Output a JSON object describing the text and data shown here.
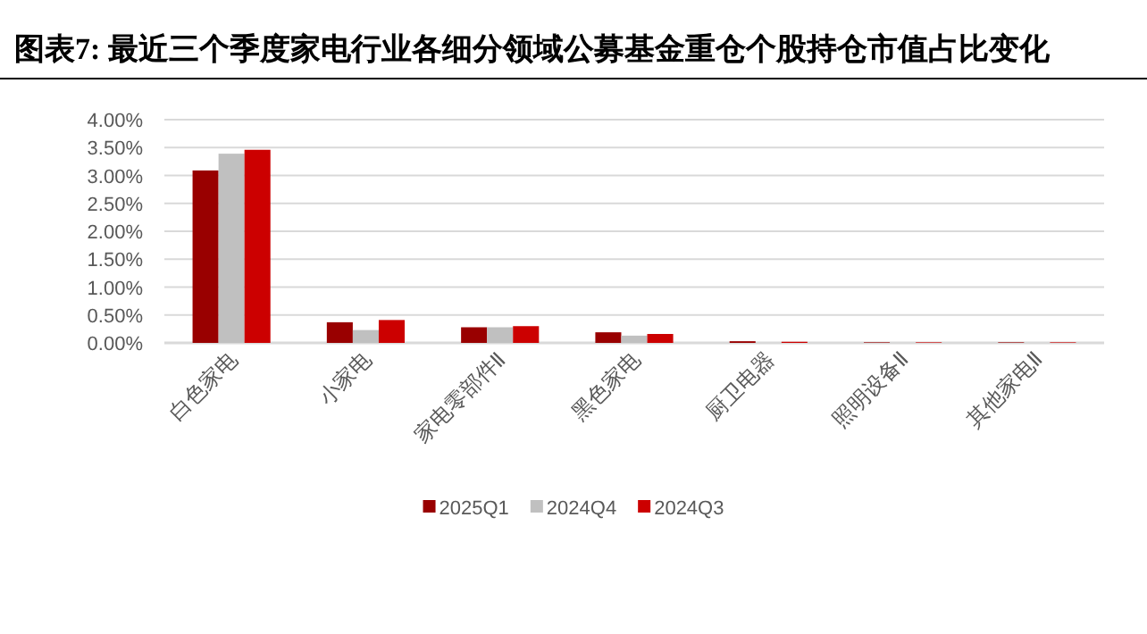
{
  "chart_data": {
    "type": "bar",
    "title": "图表7: 最近三个季度家电行业各细分领域公募基金重仓个股持仓市值占比变化",
    "categories": [
      "白色家电",
      "小家电",
      "家电零部件Ⅱ",
      "黑色家电",
      "厨卫电器",
      "照明设备Ⅱ",
      "其他家电Ⅱ"
    ],
    "series": [
      {
        "name": "2025Q1",
        "color": "#990000",
        "values": [
          3.09,
          0.37,
          0.28,
          0.19,
          0.03,
          0.01,
          0.01
        ]
      },
      {
        "name": "2024Q4",
        "color": "#c0c0c0",
        "values": [
          3.39,
          0.23,
          0.28,
          0.13,
          null,
          null,
          null
        ]
      },
      {
        "name": "2024Q3",
        "color": "#cc0000",
        "values": [
          3.46,
          0.41,
          0.3,
          0.16,
          0.02,
          0.01,
          0.01
        ]
      }
    ],
    "ylim": [
      0,
      4
    ],
    "yticks": [
      {
        "value": 0,
        "label": "0.00%"
      },
      {
        "value": 0.5,
        "label": "0.50%"
      },
      {
        "value": 1,
        "label": "1.00%"
      },
      {
        "value": 1.5,
        "label": "1.50%"
      },
      {
        "value": 2,
        "label": "2.00%"
      },
      {
        "value": 2.5,
        "label": "2.50%"
      },
      {
        "value": 3,
        "label": "3.00%"
      },
      {
        "value": 3.5,
        "label": "3.50%"
      },
      {
        "value": 4,
        "label": "4.00%"
      }
    ],
    "grid": "y",
    "legend": "bottom"
  }
}
